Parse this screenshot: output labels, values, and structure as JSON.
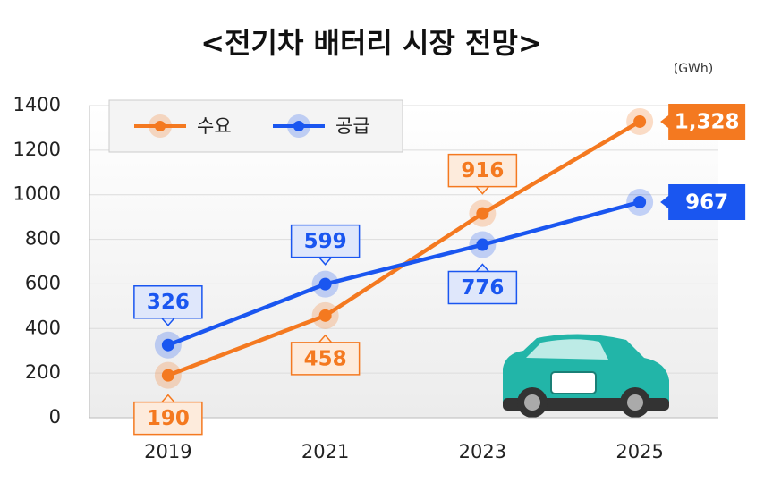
{
  "chart_data": {
    "type": "line",
    "title": "<전기차 배터리 시장 전망>",
    "unit": "(GWh)",
    "categories": [
      "2019",
      "2021",
      "2023",
      "2025"
    ],
    "series": [
      {
        "name": "수요",
        "color": "#f47920",
        "values": [
          190,
          458,
          916,
          1328
        ],
        "value_labels": [
          "190",
          "458",
          "916",
          "1,328"
        ]
      },
      {
        "name": "공급",
        "color": "#1a56f0",
        "values": [
          326,
          599,
          776,
          967
        ]
      }
    ],
    "ylim": [
      0,
      1400
    ],
    "yticks": [
      0,
      200,
      400,
      600,
      800,
      1000,
      1200,
      1400
    ],
    "grid": true,
    "legend": "top-left"
  }
}
